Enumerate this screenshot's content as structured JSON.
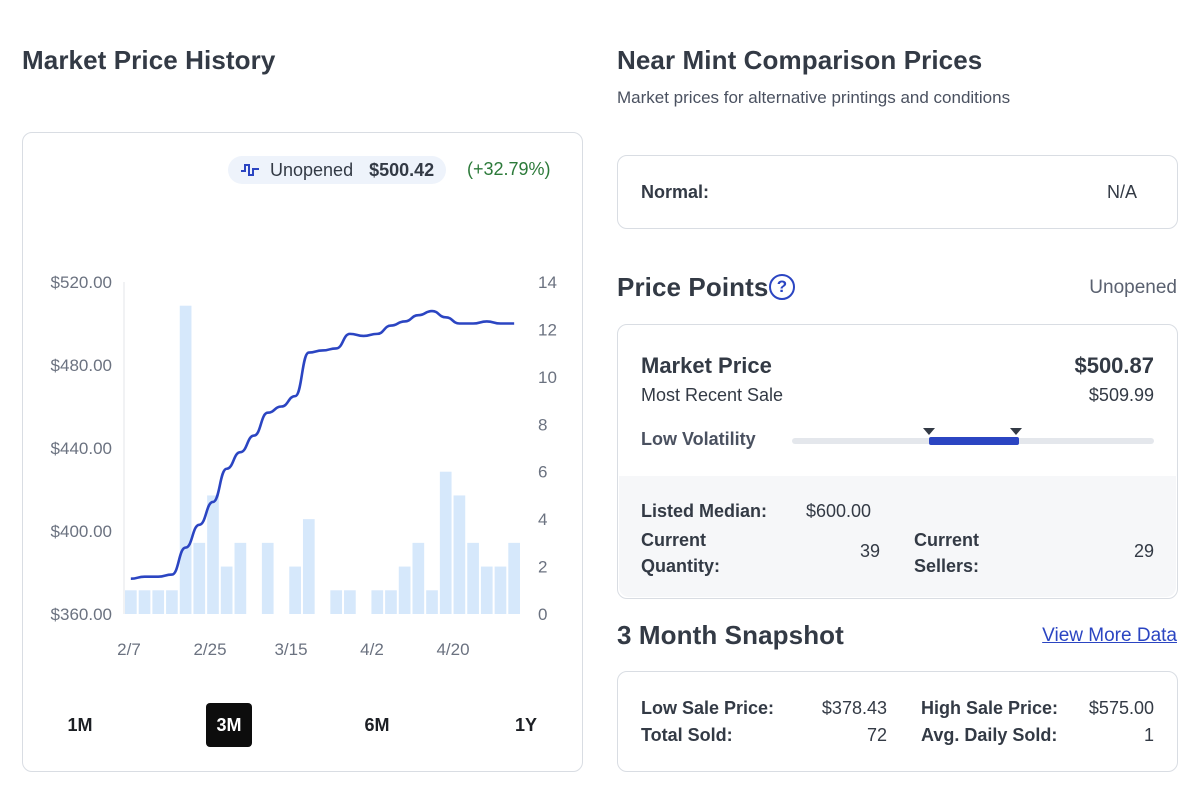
{
  "left": {
    "title": "Market Price History",
    "legend": {
      "label": "Unopened",
      "value": "$500.42",
      "change": "(+32.79%)",
      "color": "#2b45c2"
    },
    "ranges": [
      "1M",
      "3M",
      "6M",
      "1Y"
    ],
    "active_range": "3M"
  },
  "chart_data": {
    "type": "line",
    "left_axis_ticks": [
      "$520.00",
      "$480.00",
      "$440.00",
      "$400.00",
      "$360.00"
    ],
    "left_ylim": [
      360,
      520
    ],
    "right_axis_ticks": [
      "14",
      "12",
      "10",
      "8",
      "6",
      "4",
      "2",
      "0"
    ],
    "right_ylim": [
      0,
      14
    ],
    "x_ticks": [
      "2/7",
      "2/25",
      "3/15",
      "4/2",
      "4/20"
    ],
    "line_color": "#2b45c2",
    "bar_color": "#d6e8fb",
    "series": [
      {
        "name": "Unopened",
        "kind": "line",
        "values": [
          377,
          378,
          378,
          379,
          392,
          403,
          414,
          430,
          438,
          446,
          457,
          460,
          465,
          486,
          487,
          488,
          495,
          494,
          495,
          499,
          501,
          504,
          506,
          503,
          500,
          500,
          501,
          500,
          500
        ]
      },
      {
        "kind": "bar",
        "values": [
          1,
          1,
          1,
          1,
          13,
          3,
          5,
          2,
          3,
          0,
          3,
          0,
          2,
          4,
          0,
          1,
          1,
          0,
          1,
          1,
          2,
          3,
          1,
          6,
          5,
          3,
          2,
          2,
          3
        ]
      }
    ]
  },
  "right": {
    "title": "Near Mint Comparison Prices",
    "subtitle": "Market prices for alternative printings and conditions",
    "normal_label": "Normal:",
    "normal_value": "N/A",
    "price_points": {
      "title": "Price Points",
      "help_glyph": "?",
      "condition": "Unopened",
      "market_price_label": "Market Price",
      "market_price_value": "$500.87",
      "recent_sale_label": "Most Recent Sale",
      "recent_sale_value": "$509.99",
      "volatility_label": "Low Volatility",
      "volatility_color": "#2b45c2",
      "listed_median_label": "Listed Median:",
      "listed_median_value": "$600.00",
      "current_quantity_label": "Current Quantity:",
      "current_quantity_value": "39",
      "current_sellers_label": "Current Sellers:",
      "current_sellers_value": "29"
    },
    "snapshot": {
      "title": "3 Month Snapshot",
      "link": "View More Data",
      "low_sale_label": "Low Sale Price:",
      "low_sale_value": "$378.43",
      "high_sale_label": "High Sale Price:",
      "high_sale_value": "$575.00",
      "total_sold_label": "Total Sold:",
      "total_sold_value": "72",
      "avg_daily_label": "Avg. Daily Sold:",
      "avg_daily_value": "1"
    }
  }
}
